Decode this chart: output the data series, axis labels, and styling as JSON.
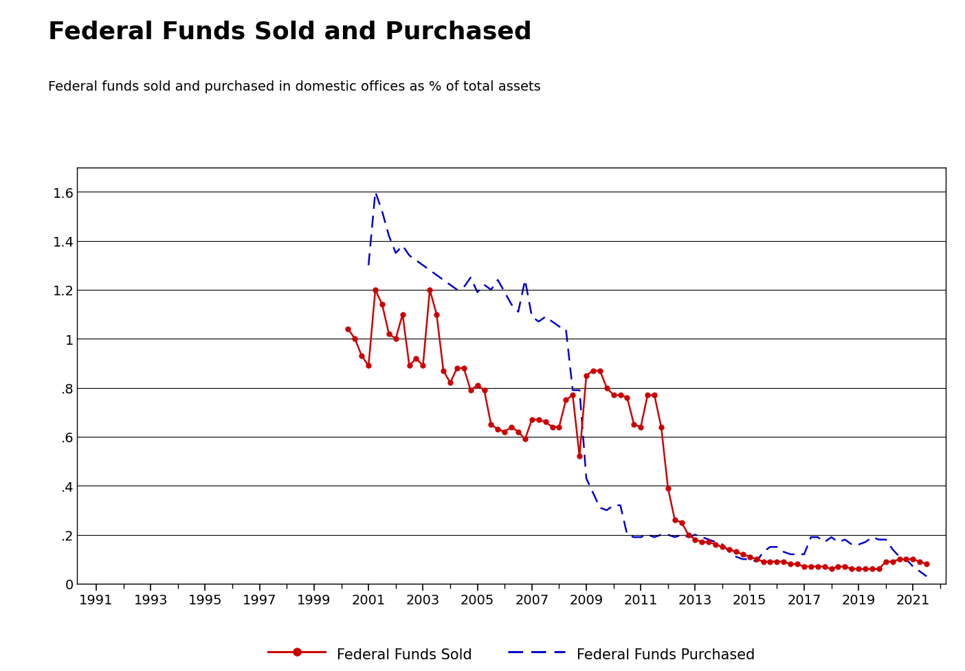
{
  "title": "Federal Funds Sold and Purchased",
  "subtitle": "Federal funds sold and purchased in domestic offices as % of total assets",
  "background_color": "#ffffff",
  "title_fontsize": 26,
  "subtitle_fontsize": 14,
  "ylim": [
    0,
    1.7
  ],
  "yticks": [
    0,
    0.2,
    0.4,
    0.6,
    0.8,
    1.0,
    1.2,
    1.4,
    1.6
  ],
  "ytick_labels": [
    "0",
    ".2",
    ".4",
    ".6",
    ".8",
    "1",
    "1.2",
    "1.4",
    "1.6"
  ],
  "xlim_start": 1990.3,
  "xlim_end": 2022.2,
  "xticks": [
    1991,
    1993,
    1995,
    1997,
    1999,
    2001,
    2003,
    2005,
    2007,
    2009,
    2011,
    2013,
    2015,
    2017,
    2019,
    2021
  ],
  "sold_color": "#cc0000",
  "purchased_color": "#0000cc",
  "sold_x": [
    2000.25,
    2000.5,
    2000.75,
    2001.0,
    2001.25,
    2001.5,
    2001.75,
    2002.0,
    2002.25,
    2002.5,
    2002.75,
    2003.0,
    2003.25,
    2003.5,
    2003.75,
    2004.0,
    2004.25,
    2004.5,
    2004.75,
    2005.0,
    2005.25,
    2005.5,
    2005.75,
    2006.0,
    2006.25,
    2006.5,
    2006.75,
    2007.0,
    2007.25,
    2007.5,
    2007.75,
    2008.0,
    2008.25,
    2008.5,
    2008.75,
    2009.0,
    2009.25,
    2009.5,
    2009.75,
    2010.0,
    2010.25,
    2010.5,
    2010.75,
    2011.0,
    2011.25,
    2011.5,
    2011.75,
    2012.0,
    2012.25,
    2012.5,
    2012.75,
    2013.0,
    2013.25,
    2013.5,
    2013.75,
    2014.0,
    2014.25,
    2014.5,
    2014.75,
    2015.0,
    2015.25,
    2015.5,
    2015.75,
    2016.0,
    2016.25,
    2016.5,
    2016.75,
    2017.0,
    2017.25,
    2017.5,
    2017.75,
    2018.0,
    2018.25,
    2018.5,
    2018.75,
    2019.0,
    2019.25,
    2019.5,
    2019.75,
    2020.0,
    2020.25,
    2020.5,
    2020.75,
    2021.0,
    2021.25,
    2021.5
  ],
  "sold_y": [
    1.04,
    1.0,
    0.93,
    0.89,
    1.2,
    1.14,
    1.02,
    1.0,
    1.1,
    0.89,
    0.92,
    0.89,
    1.2,
    1.1,
    0.87,
    0.82,
    0.88,
    0.88,
    0.79,
    0.81,
    0.79,
    0.65,
    0.63,
    0.62,
    0.64,
    0.62,
    0.59,
    0.67,
    0.67,
    0.66,
    0.64,
    0.64,
    0.75,
    0.77,
    0.52,
    0.85,
    0.87,
    0.87,
    0.8,
    0.77,
    0.77,
    0.76,
    0.65,
    0.64,
    0.77,
    0.77,
    0.64,
    0.39,
    0.26,
    0.25,
    0.2,
    0.18,
    0.17,
    0.17,
    0.16,
    0.15,
    0.14,
    0.13,
    0.12,
    0.11,
    0.1,
    0.09,
    0.09,
    0.09,
    0.09,
    0.08,
    0.08,
    0.07,
    0.07,
    0.07,
    0.07,
    0.06,
    0.07,
    0.07,
    0.06,
    0.06,
    0.06,
    0.06,
    0.06,
    0.09,
    0.09,
    0.1,
    0.1,
    0.1,
    0.09,
    0.08
  ],
  "purchased_x": [
    2001.0,
    2001.25,
    2001.5,
    2001.75,
    2002.0,
    2002.25,
    2002.5,
    2002.75,
    2003.0,
    2003.25,
    2003.5,
    2003.75,
    2004.0,
    2004.25,
    2004.5,
    2004.75,
    2005.0,
    2005.25,
    2005.5,
    2005.75,
    2006.0,
    2006.25,
    2006.5,
    2006.75,
    2007.0,
    2007.25,
    2007.5,
    2007.75,
    2008.0,
    2008.25,
    2008.5,
    2008.75,
    2009.0,
    2009.25,
    2009.5,
    2009.75,
    2010.0,
    2010.25,
    2010.5,
    2010.75,
    2011.0,
    2011.25,
    2011.5,
    2011.75,
    2012.0,
    2012.25,
    2012.5,
    2012.75,
    2013.0,
    2013.25,
    2013.5,
    2013.75,
    2014.0,
    2014.25,
    2014.5,
    2014.75,
    2015.0,
    2015.25,
    2015.5,
    2015.75,
    2016.0,
    2016.25,
    2016.5,
    2016.75,
    2017.0,
    2017.25,
    2017.5,
    2017.75,
    2018.0,
    2018.25,
    2018.5,
    2018.75,
    2019.0,
    2019.25,
    2019.5,
    2019.75,
    2020.0,
    2020.25,
    2020.5,
    2020.75,
    2021.0,
    2021.25,
    2021.5
  ],
  "purchased_y": [
    1.3,
    1.6,
    1.52,
    1.42,
    1.35,
    1.38,
    1.34,
    1.32,
    1.3,
    1.28,
    1.26,
    1.24,
    1.22,
    1.2,
    1.21,
    1.25,
    1.19,
    1.22,
    1.2,
    1.24,
    1.19,
    1.14,
    1.11,
    1.24,
    1.09,
    1.07,
    1.09,
    1.07,
    1.05,
    1.04,
    0.79,
    0.79,
    0.43,
    0.37,
    0.31,
    0.3,
    0.32,
    0.32,
    0.2,
    0.19,
    0.19,
    0.2,
    0.19,
    0.2,
    0.2,
    0.19,
    0.2,
    0.19,
    0.2,
    0.19,
    0.18,
    0.17,
    0.16,
    0.13,
    0.11,
    0.1,
    0.1,
    0.09,
    0.13,
    0.15,
    0.15,
    0.13,
    0.12,
    0.12,
    0.12,
    0.19,
    0.19,
    0.17,
    0.19,
    0.17,
    0.18,
    0.16,
    0.16,
    0.17,
    0.19,
    0.18,
    0.18,
    0.14,
    0.11,
    0.1,
    0.07,
    0.05,
    0.03
  ],
  "legend_sold_label": "Federal Funds Sold",
  "legend_purchased_label": "Federal Funds Purchased"
}
